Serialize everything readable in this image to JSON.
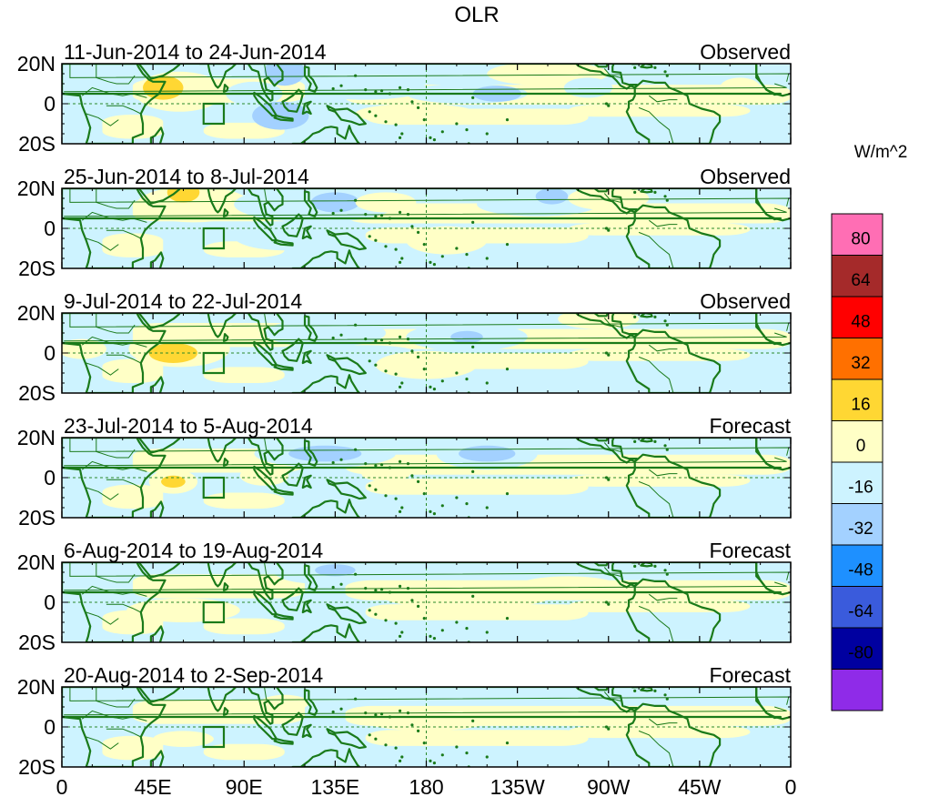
{
  "title": "OLR",
  "units": "W/m^2",
  "colors": {
    "coast": "#1a7a1a",
    "frame": "#000000",
    "ref_line": "#2a8a2a"
  },
  "panels": [
    {
      "period": "11-Jun-2014 to 24-Jun-2014",
      "kind": "Observed",
      "blobs": [
        {
          "lon": 58,
          "lat": 6,
          "rx": 22,
          "ry": 10,
          "level": 1
        },
        {
          "lon": 50,
          "lat": 8,
          "rx": 10,
          "ry": 6,
          "level": 2
        },
        {
          "lon": 95,
          "lat": 5,
          "rx": 14,
          "ry": 6,
          "level": -1
        },
        {
          "lon": 110,
          "lat": 16,
          "rx": 10,
          "ry": 7,
          "level": -2
        },
        {
          "lon": 108,
          "lat": -6,
          "rx": 14,
          "ry": 7,
          "level": -2
        },
        {
          "lon": 150,
          "lat": 8,
          "rx": 30,
          "ry": 6,
          "level": -1
        },
        {
          "lon": -160,
          "lat": 5,
          "rx": 30,
          "ry": 5,
          "level": -1
        },
        {
          "lon": -145,
          "lat": 5,
          "rx": 12,
          "ry": 4,
          "level": -2
        },
        {
          "lon": 175,
          "lat": -5,
          "rx": 30,
          "ry": 5,
          "level": 1
        },
        {
          "lon": -120,
          "lat": 15,
          "rx": 30,
          "ry": 6,
          "level": 1
        },
        {
          "lon": -100,
          "lat": 8,
          "rx": 12,
          "ry": 5,
          "level": -1
        },
        {
          "lon": -25,
          "lat": 8,
          "rx": 10,
          "ry": 5,
          "level": 1
        }
      ]
    },
    {
      "period": "25-Jun-2014 to 8-Jul-2014",
      "kind": "Observed",
      "blobs": [
        {
          "lon": 65,
          "lat": 12,
          "rx": 28,
          "ry": 9,
          "level": 1
        },
        {
          "lon": 60,
          "lat": 18,
          "rx": 8,
          "ry": 5,
          "level": 2
        },
        {
          "lon": 125,
          "lat": 12,
          "rx": 40,
          "ry": 9,
          "level": -1
        },
        {
          "lon": 135,
          "lat": 13,
          "rx": 12,
          "ry": 5,
          "level": -2
        },
        {
          "lon": 110,
          "lat": -4,
          "rx": 25,
          "ry": 7,
          "level": -1
        },
        {
          "lon": 190,
          "lat": -6,
          "rx": 20,
          "ry": 7,
          "level": 1
        },
        {
          "lon": 160,
          "lat": 13,
          "rx": 15,
          "ry": 5,
          "level": 1
        },
        {
          "lon": -125,
          "lat": 12,
          "rx": 30,
          "ry": 6,
          "level": -1
        },
        {
          "lon": -118,
          "lat": 16,
          "rx": 8,
          "ry": 4,
          "level": -2
        },
        {
          "lon": -90,
          "lat": 15,
          "rx": 20,
          "ry": 6,
          "level": 1
        }
      ]
    },
    {
      "period": "9-Jul-2014 to 22-Jul-2014",
      "kind": "Observed",
      "blobs": [
        {
          "lon": 58,
          "lat": 2,
          "rx": 25,
          "ry": 9,
          "level": 1
        },
        {
          "lon": 55,
          "lat": 0,
          "rx": 12,
          "ry": 5,
          "level": 2
        },
        {
          "lon": 10,
          "lat": 2,
          "rx": 12,
          "ry": 5,
          "level": 1
        },
        {
          "lon": 130,
          "lat": 10,
          "rx": 30,
          "ry": 7,
          "level": -1
        },
        {
          "lon": 150,
          "lat": -2,
          "rx": 30,
          "ry": 6,
          "level": -1
        },
        {
          "lon": 180,
          "lat": -6,
          "rx": 25,
          "ry": 7,
          "level": 1
        },
        {
          "lon": -160,
          "lat": 8,
          "rx": 30,
          "ry": 7,
          "level": -1
        },
        {
          "lon": -160,
          "lat": 8,
          "rx": 8,
          "ry": 3,
          "level": -2
        },
        {
          "lon": -95,
          "lat": 17,
          "rx": 20,
          "ry": 5,
          "level": 1
        }
      ]
    },
    {
      "period": "23-Jul-2014 to 5-Aug-2014",
      "kind": "Forecast",
      "blobs": [
        {
          "lon": 55,
          "lat": -2,
          "rx": 12,
          "ry": 6,
          "level": 1
        },
        {
          "lon": 55,
          "lat": -2,
          "rx": 6,
          "ry": 3,
          "level": 2
        },
        {
          "lon": 100,
          "lat": 1,
          "rx": 12,
          "ry": 5,
          "level": 1
        },
        {
          "lon": 130,
          "lat": 12,
          "rx": 35,
          "ry": 7,
          "level": -1
        },
        {
          "lon": 130,
          "lat": 12,
          "rx": 18,
          "ry": 4,
          "level": -2
        },
        {
          "lon": -150,
          "lat": 12,
          "rx": 25,
          "ry": 8,
          "level": -1
        },
        {
          "lon": -150,
          "lat": 12,
          "rx": 14,
          "ry": 4,
          "level": -2
        },
        {
          "lon": -48,
          "lat": -18,
          "rx": 15,
          "ry": 6,
          "level": -1
        },
        {
          "lon": -30,
          "lat": 6,
          "rx": 12,
          "ry": 4,
          "level": 1
        },
        {
          "lon": 160,
          "lat": 2,
          "rx": 12,
          "ry": 4,
          "level": 1
        }
      ]
    },
    {
      "period": "6-Aug-2014 to 19-Aug-2014",
      "kind": "Forecast",
      "blobs": [
        {
          "lon": 60,
          "lat": -4,
          "rx": 28,
          "ry": 6,
          "level": 1
        },
        {
          "lon": 130,
          "lat": 15,
          "rx": 25,
          "ry": 6,
          "level": -1
        },
        {
          "lon": 135,
          "lat": 16,
          "rx": 10,
          "ry": 3,
          "level": -2
        },
        {
          "lon": 200,
          "lat": 2,
          "rx": 40,
          "ry": 5,
          "level": 1
        },
        {
          "lon": -110,
          "lat": 8,
          "rx": 25,
          "ry": 5,
          "level": 1
        }
      ]
    },
    {
      "period": "20-Aug-2014 to 2-Sep-2014",
      "kind": "Forecast",
      "blobs": [
        {
          "lon": 60,
          "lat": -6,
          "rx": 15,
          "ry": 4,
          "level": 1
        },
        {
          "lon": 110,
          "lat": 12,
          "rx": 12,
          "ry": 4,
          "level": 1
        },
        {
          "lon": 180,
          "lat": 3,
          "rx": 30,
          "ry": 5,
          "level": 1
        }
      ]
    }
  ],
  "x_ticks": [
    "0",
    "45E",
    "90E",
    "135E",
    "180",
    "135W",
    "90W",
    "45W",
    "0"
  ],
  "x_tick_lons": [
    0,
    45,
    90,
    135,
    180,
    225,
    270,
    315,
    360
  ],
  "y_ticks": [
    "20N",
    "0",
    "20S"
  ],
  "y_tick_lats": [
    20,
    0,
    -20
  ],
  "lat_range": [
    -20,
    20
  ],
  "lon_range": [
    0,
    360
  ],
  "colorbar": {
    "labels": [
      "80",
      "64",
      "48",
      "32",
      "16",
      "0",
      "-16",
      "-32",
      "-48",
      "-64",
      "-80"
    ],
    "colors": [
      "#ff6eb4",
      "#a52a2a",
      "#ff0000",
      "#ff7000",
      "#ffd733",
      "#ffffc6",
      "#cdf3ff",
      "#a3d1ff",
      "#1e90ff",
      "#3a5bdc",
      "#0000a0",
      "#8f2be8"
    ]
  },
  "anomaly_colors": {
    "pos1": "#ffffc6",
    "pos2": "#ffd733",
    "pos3": "#ff7000",
    "neg1": "#cdf3ff",
    "neg2": "#a3d1ff",
    "neg3": "#1e90ff"
  }
}
